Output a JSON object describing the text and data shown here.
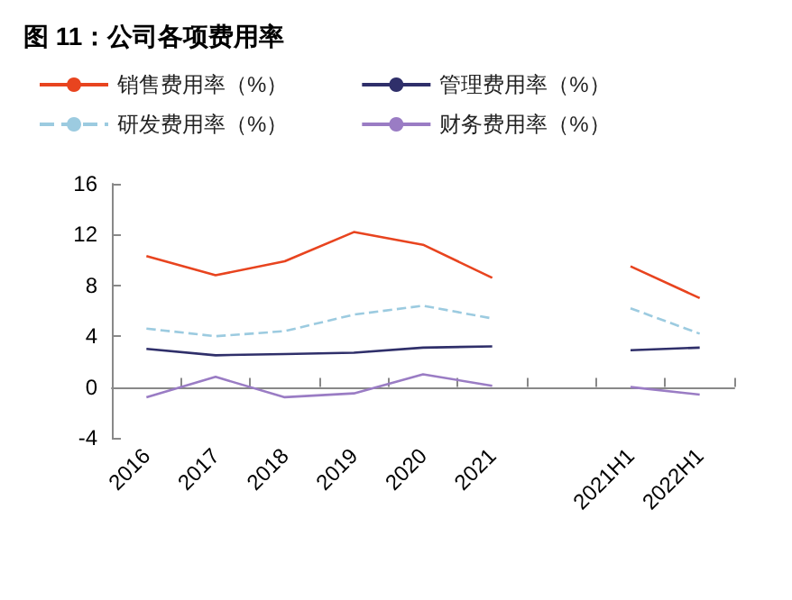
{
  "chart_data": {
    "type": "line",
    "title": "图 11：公司各项费用率",
    "categories": [
      "2016",
      "2017",
      "2018",
      "2019",
      "2020",
      "2021",
      null,
      "2021H1",
      "2022H1"
    ],
    "series": [
      {
        "name": "销售费用率（%）",
        "color": "#e8441f",
        "line_style": "solid",
        "values": [
          10.3,
          8.8,
          9.9,
          12.2,
          11.2,
          8.6,
          null,
          9.5,
          7.0
        ]
      },
      {
        "name": "管理费用率（%）",
        "color": "#2f2f6a",
        "line_style": "solid",
        "values": [
          3.0,
          2.5,
          2.6,
          2.7,
          3.1,
          3.2,
          null,
          2.9,
          3.1
        ]
      },
      {
        "name": "研发费用率（%）",
        "color": "#9ccbe0",
        "line_style": "dashed",
        "values": [
          4.6,
          4.0,
          4.4,
          5.7,
          6.4,
          5.4,
          null,
          6.2,
          4.2
        ]
      },
      {
        "name": "财务费用率（%）",
        "color": "#9a7cc4",
        "line_style": "solid",
        "values": [
          -0.8,
          0.8,
          -0.8,
          -0.5,
          1.0,
          0.1,
          null,
          0.0,
          -0.6
        ]
      }
    ],
    "ylim": [
      -4,
      16
    ],
    "yticks": [
      -4,
      0,
      4,
      8,
      12,
      16
    ],
    "grid": false,
    "legend": "top",
    "marker": "none"
  }
}
